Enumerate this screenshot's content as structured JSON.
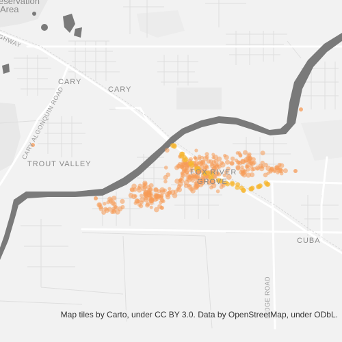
{
  "labels": {
    "area_top": "eservation",
    "area": "Area",
    "highway": "GHWAY",
    "cary_algonquin_road": "CARY ALGONQUIN ROAD",
    "cary_1": "CARY",
    "cary_2": "CARY",
    "trout_valley": "TROUT VALLEY",
    "fox_river": "FOX RIVER",
    "grove": "GROVE",
    "cuba": "CUBA",
    "ridge_road": "RIDGE ROAD"
  },
  "attribution": "Map tiles by Carto, under CC BY 3.0. Data by OpenStreetMap, under ODbL.",
  "colors": {
    "background": "#f2f2f2",
    "water": "#7a7a7a",
    "minor_road": "#dedede",
    "major_road": "#ffffff",
    "railway": "#c8c8c8",
    "point": "#f59a55",
    "point_dense": "#f7b731"
  }
}
